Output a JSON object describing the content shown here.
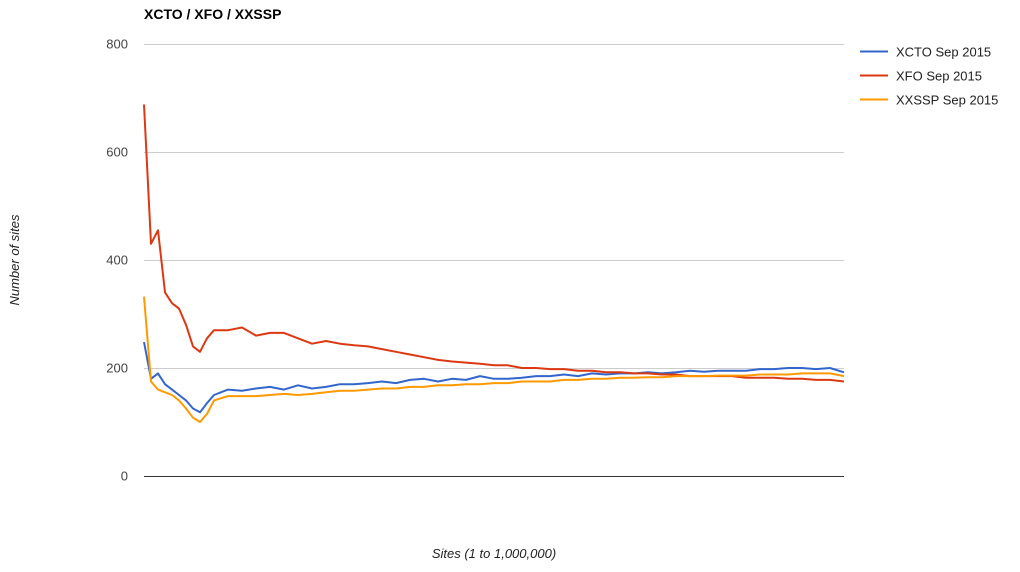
{
  "chart_data": {
    "type": "line",
    "title": "XCTO / XFO / XXSSP",
    "xlabel": "Sites (1 to 1,000,000)",
    "ylabel": "Number of sites",
    "ylim": [
      0,
      800
    ],
    "yticks": [
      0,
      200,
      400,
      600,
      800
    ],
    "xlim": [
      1,
      1000000
    ],
    "grid": true,
    "legend_position": "right",
    "x": [
      1,
      10000,
      20000,
      30000,
      40000,
      50000,
      60000,
      70000,
      80000,
      90000,
      100000,
      120000,
      140000,
      160000,
      180000,
      200000,
      220000,
      240000,
      260000,
      280000,
      300000,
      320000,
      340000,
      360000,
      380000,
      400000,
      420000,
      440000,
      460000,
      480000,
      500000,
      520000,
      540000,
      560000,
      580000,
      600000,
      620000,
      640000,
      660000,
      680000,
      700000,
      720000,
      740000,
      760000,
      780000,
      800000,
      820000,
      840000,
      860000,
      880000,
      900000,
      920000,
      940000,
      960000,
      980000,
      1000000
    ],
    "series": [
      {
        "name": "XCTO Sep 2015",
        "color": "#3366cc",
        "values": [
          248,
          180,
          190,
          170,
          160,
          150,
          140,
          125,
          118,
          135,
          150,
          160,
          158,
          162,
          165,
          160,
          168,
          162,
          165,
          170,
          170,
          172,
          175,
          172,
          178,
          180,
          175,
          180,
          178,
          185,
          180,
          180,
          182,
          185,
          185,
          188,
          185,
          190,
          188,
          190,
          190,
          192,
          190,
          192,
          195,
          193,
          195,
          195,
          195,
          198,
          198,
          200,
          200,
          198,
          200,
          192
        ]
      },
      {
        "name": "XFO Sep 2015",
        "color": "#dc3912",
        "values": [
          688,
          430,
          455,
          340,
          320,
          310,
          280,
          240,
          230,
          255,
          270,
          270,
          275,
          260,
          265,
          265,
          255,
          245,
          250,
          245,
          242,
          240,
          235,
          230,
          225,
          220,
          215,
          212,
          210,
          208,
          205,
          205,
          200,
          200,
          198,
          198,
          195,
          195,
          192,
          192,
          190,
          190,
          188,
          188,
          185,
          185,
          185,
          185,
          182,
          182,
          182,
          180,
          180,
          178,
          178,
          175
        ]
      },
      {
        "name": "XXSSP Sep 2015",
        "color": "#ff9900",
        "values": [
          332,
          175,
          160,
          155,
          150,
          140,
          125,
          108,
          100,
          115,
          140,
          148,
          148,
          148,
          150,
          152,
          150,
          152,
          155,
          158,
          158,
          160,
          162,
          162,
          165,
          165,
          168,
          168,
          170,
          170,
          172,
          172,
          175,
          175,
          175,
          178,
          178,
          180,
          180,
          182,
          182,
          183,
          183,
          185,
          185,
          185,
          186,
          186,
          186,
          188,
          188,
          188,
          190,
          190,
          190,
          185
        ]
      }
    ]
  }
}
